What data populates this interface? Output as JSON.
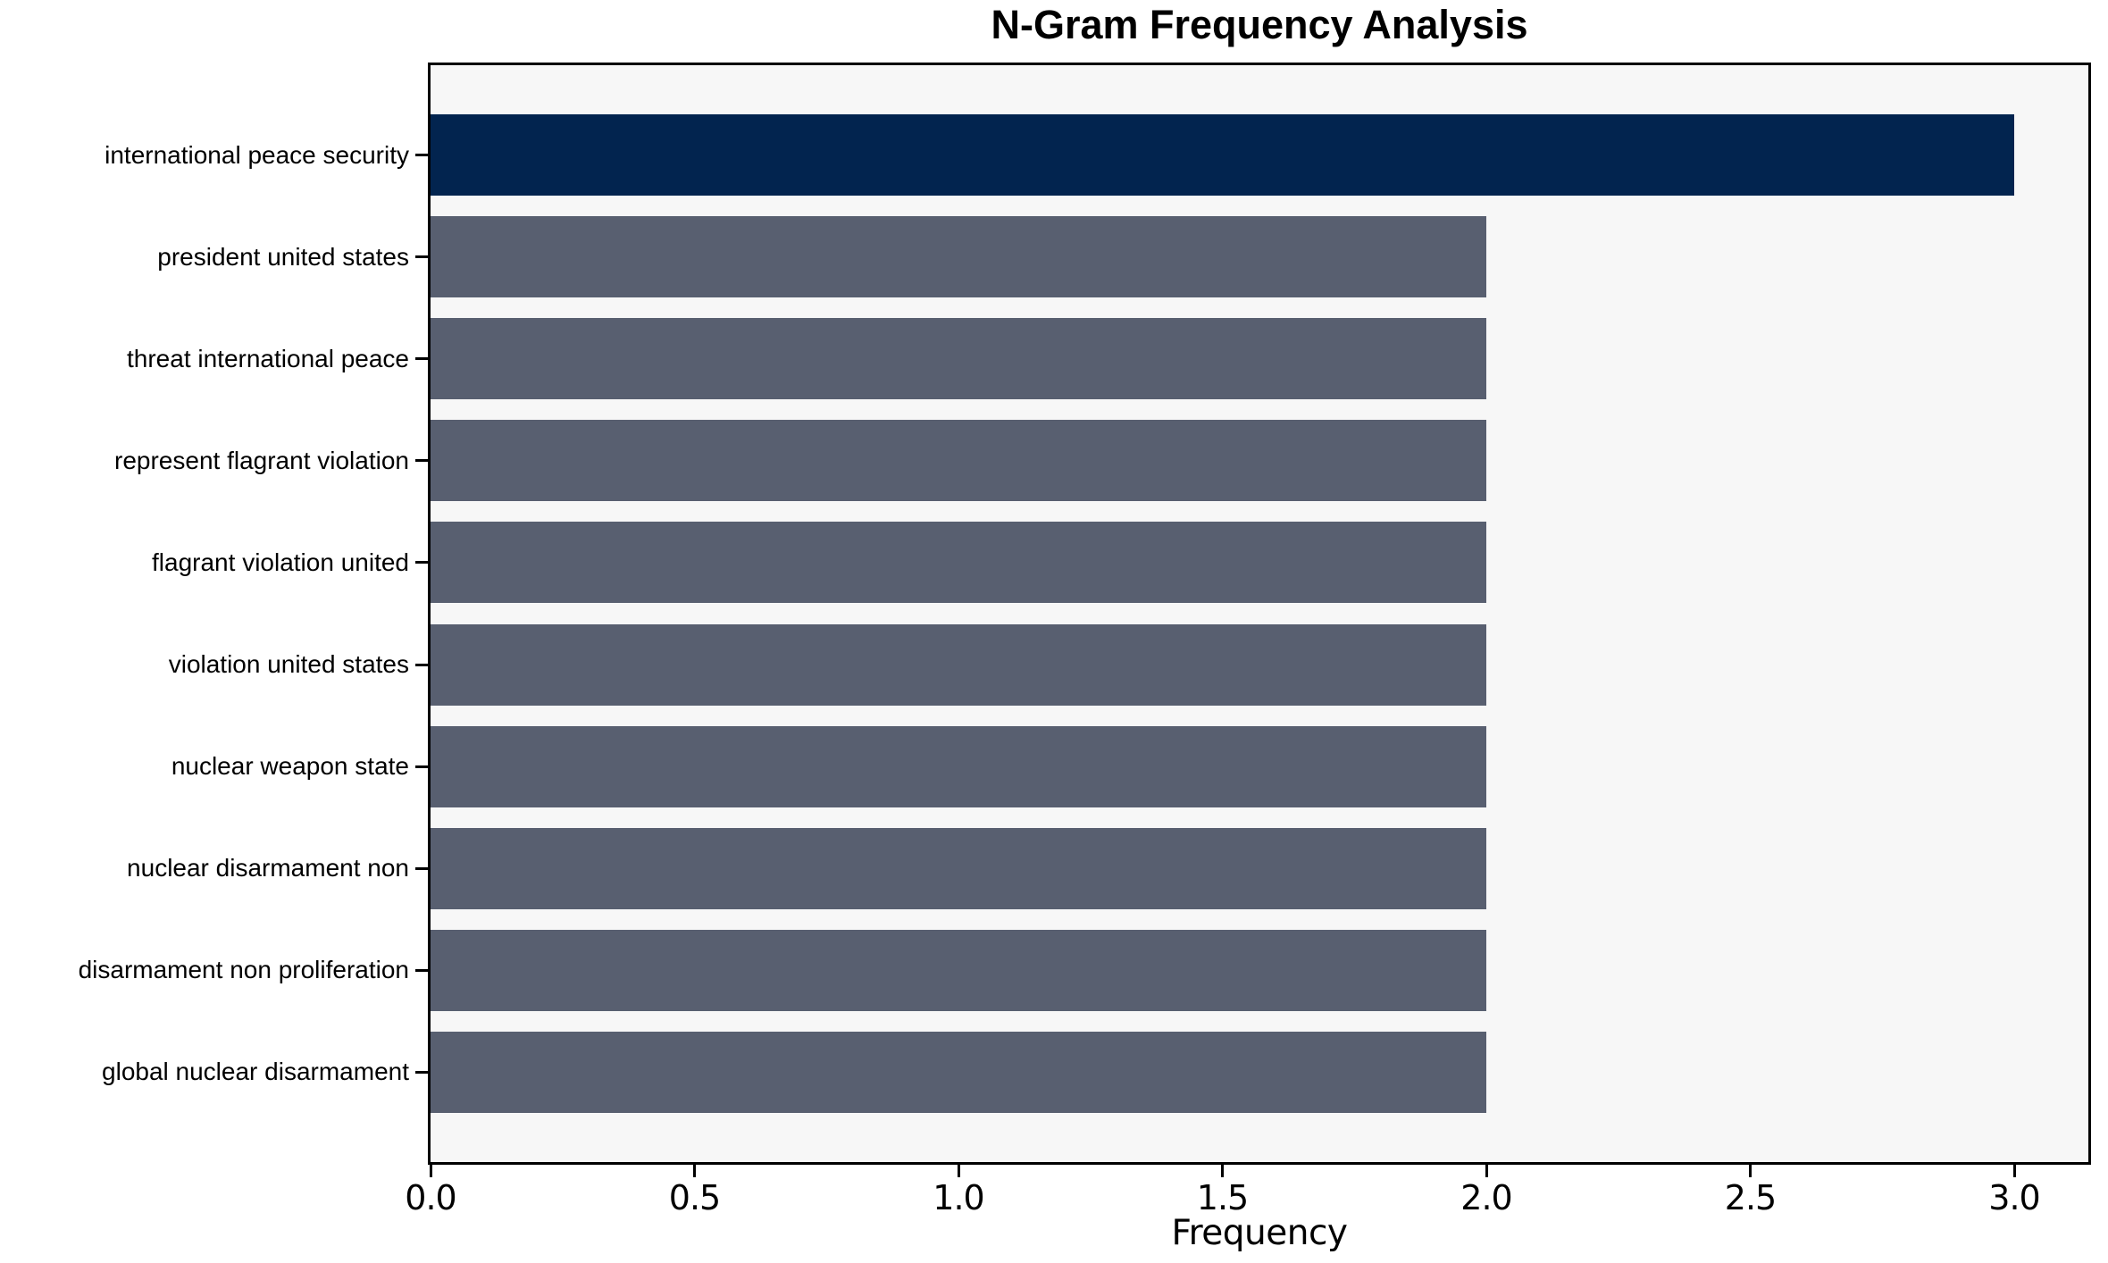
{
  "chart_data": {
    "type": "bar",
    "orientation": "horizontal",
    "title": "N-Gram Frequency Analysis",
    "xlabel": "Frequency",
    "ylabel": "",
    "categories": [
      "international peace security",
      "president united states",
      "threat international peace",
      "represent flagrant violation",
      "flagrant violation united",
      "violation united states",
      "nuclear weapon state",
      "nuclear disarmament non",
      "disarmament non proliferation",
      "global nuclear disarmament"
    ],
    "values": [
      3,
      2,
      2,
      2,
      2,
      2,
      2,
      2,
      2,
      2
    ],
    "xlim": [
      0,
      3.15
    ],
    "xticks": [
      0,
      0.5,
      1.0,
      1.5,
      2.0,
      2.5,
      3.0
    ],
    "xtick_labels": [
      "0.0",
      "0.5",
      "1.0",
      "1.5",
      "2.0",
      "2.5",
      "3.0"
    ],
    "grid": false,
    "legend_position": "none",
    "colors": {
      "highlight_bar": "#02244F",
      "default_bar": "#585F70",
      "plot_background": "#F7F7F7",
      "figure_background": "#FFFFFF",
      "spine": "#000000",
      "text": "#000000"
    }
  }
}
